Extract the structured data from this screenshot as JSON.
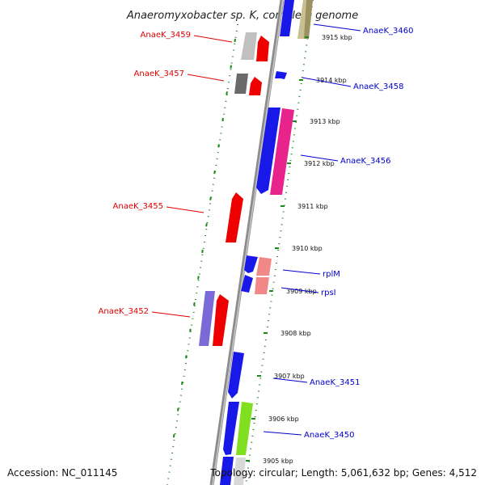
{
  "title": "Anaeromyxobacter sp. K, complete genome",
  "footer": {
    "accession": "Accession: NC_011145",
    "summary": "Topology: circular; Length: 5,061,632 bp; Genes: 4,512"
  },
  "colors": {
    "left_label": "#dd0000",
    "right_label": "#0000cc",
    "ruler": "#1a8a1a",
    "backbone": "#8c8c8c"
  },
  "scale_ticks": [
    "3915 kbp",
    "3914 kbp",
    "3913 kbp",
    "3912 kbp",
    "3911 kbp",
    "3910 kbp",
    "3909 kbp",
    "3908 kbp",
    "3907 kbp",
    "3906 kbp",
    "3905 kbp"
  ],
  "left_labels": [
    "AnaeK_3459",
    "AnaeK_3457",
    "AnaeK_3455",
    "AnaeK_3452"
  ],
  "right_labels": [
    "AnaeK_3460",
    "AnaeK_3458",
    "AnaeK_3456",
    "rplM",
    "rpsI",
    "AnaeK_3451",
    "AnaeK_3450"
  ]
}
